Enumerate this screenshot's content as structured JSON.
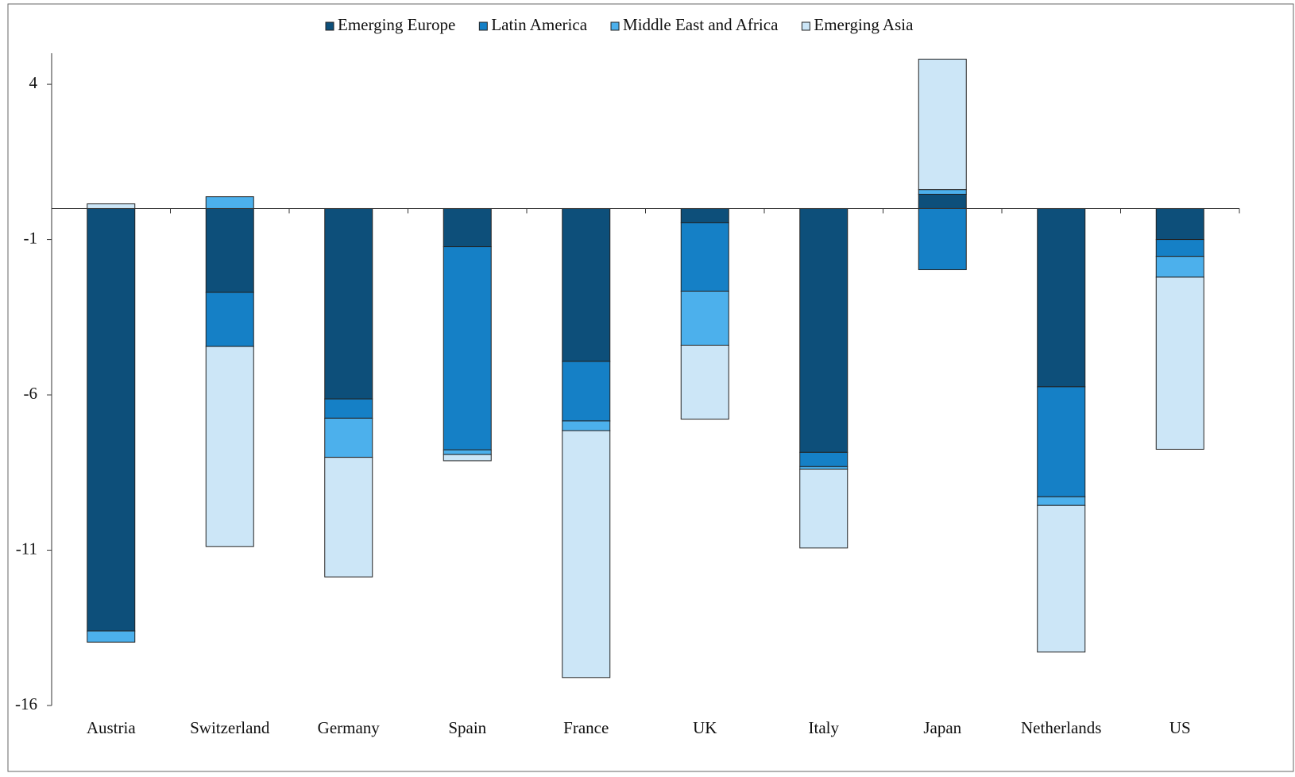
{
  "chart_data": {
    "type": "stacked-bar",
    "categories": [
      "Austria",
      "Switzerland",
      "Germany",
      "Spain",
      "France",
      "UK",
      "Italy",
      "Japan",
      "Netherlands",
      "US"
    ],
    "series": [
      {
        "name": "Emerging Europe",
        "color": "#0d4f7a",
        "values": [
          -13.6,
          -2.7,
          -6.13,
          -1.23,
          -4.92,
          -0.46,
          -7.85,
          0.46,
          -5.74,
          -1.0
        ]
      },
      {
        "name": "Latin America",
        "color": "#1580c6",
        "values": [
          0,
          -1.74,
          -0.62,
          -6.54,
          -1.92,
          -2.2,
          -0.46,
          -1.97,
          -3.54,
          -0.54
        ]
      },
      {
        "name": "Middle East and Africa",
        "color": "#4cb0ec",
        "values": [
          -0.36,
          0.38,
          -1.26,
          -0.15,
          -0.31,
          -1.74,
          -0.08,
          0.15,
          -0.28,
          -0.67
        ]
      },
      {
        "name": "Emerging Asia",
        "color": "#cce6f7",
        "values": [
          0.15,
          -6.44,
          -3.85,
          -0.2,
          -7.95,
          -2.38,
          -2.54,
          4.2,
          -4.72,
          -5.54
        ]
      }
    ],
    "ylim": [
      -16,
      5
    ],
    "yticks": [
      4,
      -1,
      -6,
      -11,
      -16
    ],
    "legend": "top"
  }
}
